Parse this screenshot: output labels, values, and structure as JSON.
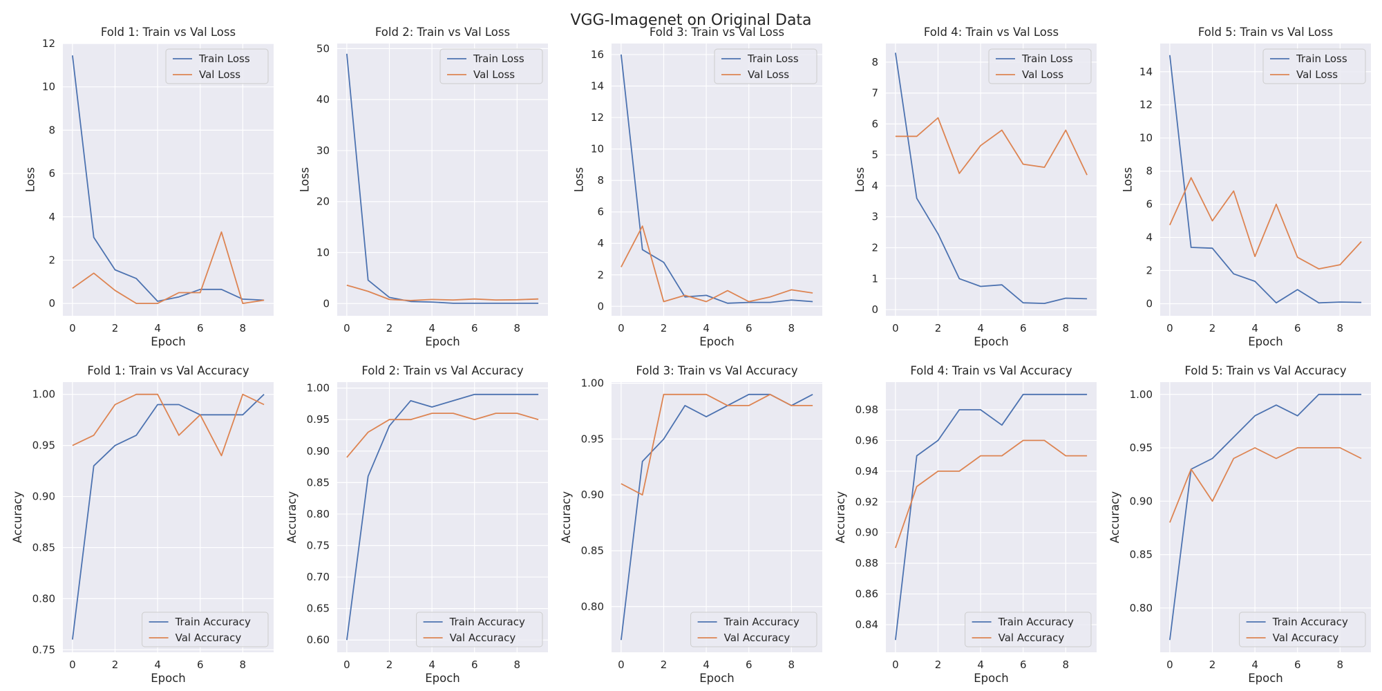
{
  "figure": {
    "title": "VGG-Imagenet on Original Data"
  },
  "colors": {
    "train": "#4c72b0",
    "val": "#dd8452",
    "axes_bg": "#eaeaf2",
    "grid": "#ffffff"
  },
  "chart_data": [
    {
      "type": "line",
      "title": "Fold 1: Train vs Val Loss",
      "xlabel": "Epoch",
      "ylabel": "Loss",
      "x": [
        0,
        1,
        2,
        3,
        4,
        5,
        6,
        7,
        8,
        9
      ],
      "xlim": [
        -0.45,
        9.45
      ],
      "xticks": [
        0,
        2,
        4,
        6,
        8
      ],
      "ylim": [
        -0.57,
        12.0
      ],
      "yticks": [
        0,
        2,
        4,
        6,
        8,
        10,
        12
      ],
      "ytick_labels": [
        "0",
        "2",
        "4",
        "6",
        "8",
        "10",
        "12"
      ],
      "legend": "top-right",
      "grid": true,
      "series": [
        {
          "name": "Train Loss",
          "color": "#4c72b0",
          "values": [
            11.45,
            3.05,
            1.55,
            1.15,
            0.1,
            0.3,
            0.65,
            0.65,
            0.2,
            0.15
          ]
        },
        {
          "name": "Val Loss",
          "color": "#dd8452",
          "values": [
            0.7,
            1.4,
            0.6,
            0.0,
            0.0,
            0.5,
            0.5,
            3.3,
            0.0,
            0.15
          ]
        }
      ]
    },
    {
      "type": "line",
      "title": "Fold 2: Train vs Val Loss",
      "xlabel": "Epoch",
      "ylabel": "Loss",
      "x": [
        0,
        1,
        2,
        3,
        4,
        5,
        6,
        7,
        8,
        9
      ],
      "xlim": [
        -0.45,
        9.45
      ],
      "xticks": [
        0,
        2,
        4,
        6,
        8
      ],
      "ylim": [
        -2.4,
        51.0
      ],
      "yticks": [
        0,
        10,
        20,
        30,
        40,
        50
      ],
      "ytick_labels": [
        "0",
        "10",
        "20",
        "30",
        "40",
        "50"
      ],
      "legend": "top-right",
      "grid": true,
      "series": [
        {
          "name": "Train Loss",
          "color": "#4c72b0",
          "values": [
            49.0,
            4.6,
            1.2,
            0.4,
            0.3,
            0.05,
            0.05,
            0.05,
            0.05,
            0.05
          ]
        },
        {
          "name": "Val Loss",
          "color": "#dd8452",
          "values": [
            3.6,
            2.4,
            0.8,
            0.6,
            0.8,
            0.7,
            0.9,
            0.7,
            0.75,
            0.9
          ]
        }
      ]
    },
    {
      "type": "line",
      "title": "Fold 3: Train vs Val Loss",
      "xlabel": "Epoch",
      "ylabel": "Loss",
      "x": [
        0,
        1,
        2,
        3,
        4,
        5,
        6,
        7,
        8,
        9
      ],
      "xlim": [
        -0.45,
        9.45
      ],
      "xticks": [
        0,
        2,
        4,
        6,
        8
      ],
      "ylim": [
        -0.6,
        16.7
      ],
      "yticks": [
        0,
        2,
        4,
        6,
        8,
        10,
        12,
        14,
        16
      ],
      "ytick_labels": [
        "0",
        "2",
        "4",
        "6",
        "8",
        "10",
        "12",
        "14",
        "16"
      ],
      "legend": "top-right",
      "grid": true,
      "series": [
        {
          "name": "Train Loss",
          "color": "#4c72b0",
          "values": [
            16.0,
            3.6,
            2.8,
            0.6,
            0.7,
            0.2,
            0.25,
            0.25,
            0.4,
            0.3
          ]
        },
        {
          "name": "Val Loss",
          "color": "#dd8452",
          "values": [
            2.5,
            5.1,
            0.3,
            0.7,
            0.3,
            1.0,
            0.3,
            0.6,
            1.05,
            0.85
          ]
        }
      ]
    },
    {
      "type": "line",
      "title": "Fold 4: Train vs Val Loss",
      "xlabel": "Epoch",
      "ylabel": "Loss",
      "x": [
        0,
        1,
        2,
        3,
        4,
        5,
        6,
        7,
        8,
        9
      ],
      "xlim": [
        -0.45,
        9.45
      ],
      "xticks": [
        0,
        2,
        4,
        6,
        8
      ],
      "ylim": [
        -0.2,
        8.6
      ],
      "yticks": [
        0,
        1,
        2,
        3,
        4,
        5,
        6,
        7,
        8
      ],
      "ytick_labels": [
        "0",
        "1",
        "2",
        "3",
        "4",
        "5",
        "6",
        "7",
        "8"
      ],
      "legend": "top-right",
      "grid": true,
      "series": [
        {
          "name": "Train Loss",
          "color": "#4c72b0",
          "values": [
            8.3,
            3.6,
            2.45,
            1.0,
            0.75,
            0.8,
            0.22,
            0.2,
            0.37,
            0.35
          ]
        },
        {
          "name": "Val Loss",
          "color": "#dd8452",
          "values": [
            5.6,
            5.6,
            6.2,
            4.4,
            5.3,
            5.8,
            4.7,
            4.6,
            5.8,
            4.35
          ]
        }
      ]
    },
    {
      "type": "line",
      "title": "Fold 5: Train vs Val Loss",
      "xlabel": "Epoch",
      "ylabel": "Loss",
      "x": [
        0,
        1,
        2,
        3,
        4,
        5,
        6,
        7,
        8,
        9
      ],
      "xlim": [
        -0.45,
        9.45
      ],
      "xticks": [
        0,
        2,
        4,
        6,
        8
      ],
      "ylim": [
        -0.73,
        15.7
      ],
      "yticks": [
        0,
        2,
        4,
        6,
        8,
        10,
        12,
        14
      ],
      "ytick_labels": [
        "0",
        "2",
        "4",
        "6",
        "8",
        "10",
        "12",
        "14"
      ],
      "legend": "top-right",
      "grid": true,
      "series": [
        {
          "name": "Train Loss",
          "color": "#4c72b0",
          "values": [
            15.0,
            3.4,
            3.35,
            1.8,
            1.35,
            0.05,
            0.85,
            0.05,
            0.1,
            0.08
          ]
        },
        {
          "name": "Val Loss",
          "color": "#dd8452",
          "values": [
            4.75,
            7.6,
            5.0,
            6.8,
            2.85,
            6.0,
            2.8,
            2.1,
            2.35,
            3.75
          ]
        }
      ]
    },
    {
      "type": "line",
      "title": "Fold 1: Train vs Val Accuracy",
      "xlabel": "Epoch",
      "ylabel": "Accuracy",
      "x": [
        0,
        1,
        2,
        3,
        4,
        5,
        6,
        7,
        8,
        9
      ],
      "xlim": [
        -0.45,
        9.45
      ],
      "xticks": [
        0,
        2,
        4,
        6,
        8
      ],
      "ylim": [
        0.7475,
        1.012
      ],
      "yticks": [
        0.75,
        0.8,
        0.85,
        0.9,
        0.95,
        1.0
      ],
      "ytick_labels": [
        "0.75",
        "0.80",
        "0.85",
        "0.90",
        "0.95",
        "1.00"
      ],
      "legend": "bottom-right",
      "grid": true,
      "series": [
        {
          "name": "Train Accuracy",
          "color": "#4c72b0",
          "values": [
            0.76,
            0.93,
            0.95,
            0.96,
            0.99,
            0.99,
            0.98,
            0.98,
            0.98,
            1.0
          ]
        },
        {
          "name": "Val Accuracy",
          "color": "#dd8452",
          "values": [
            0.95,
            0.96,
            0.99,
            1.0,
            1.0,
            0.96,
            0.98,
            0.94,
            1.0,
            0.99
          ]
        }
      ]
    },
    {
      "type": "line",
      "title": "Fold 2: Train vs Val Accuracy",
      "xlabel": "Epoch",
      "ylabel": "Accuracy",
      "x": [
        0,
        1,
        2,
        3,
        4,
        5,
        6,
        7,
        8,
        9
      ],
      "xlim": [
        -0.45,
        9.45
      ],
      "xticks": [
        0,
        2,
        4,
        6,
        8
      ],
      "ylim": [
        0.5805,
        1.0095
      ],
      "yticks": [
        0.6,
        0.65,
        0.7,
        0.75,
        0.8,
        0.85,
        0.9,
        0.95,
        1.0
      ],
      "ytick_labels": [
        "0.60",
        "0.65",
        "0.70",
        "0.75",
        "0.80",
        "0.85",
        "0.90",
        "0.95",
        "1.00"
      ],
      "legend": "bottom-right",
      "grid": true,
      "series": [
        {
          "name": "Train Accuracy",
          "color": "#4c72b0",
          "values": [
            0.6,
            0.86,
            0.94,
            0.98,
            0.97,
            0.98,
            0.99,
            0.99,
            0.99,
            0.99
          ]
        },
        {
          "name": "Val Accuracy",
          "color": "#dd8452",
          "values": [
            0.89,
            0.93,
            0.95,
            0.95,
            0.96,
            0.96,
            0.95,
            0.96,
            0.96,
            0.95
          ]
        }
      ]
    },
    {
      "type": "line",
      "title": "Fold 3: Train vs Val Accuracy",
      "xlabel": "Epoch",
      "ylabel": "Accuracy",
      "x": [
        0,
        1,
        2,
        3,
        4,
        5,
        6,
        7,
        8,
        9
      ],
      "xlim": [
        -0.45,
        9.45
      ],
      "xticks": [
        0,
        2,
        4,
        6,
        8
      ],
      "ylim": [
        0.759,
        1.001
      ],
      "yticks": [
        0.8,
        0.85,
        0.9,
        0.95,
        1.0
      ],
      "ytick_labels": [
        "0.80",
        "0.85",
        "0.90",
        "0.95",
        "1.00"
      ],
      "legend": "bottom-right",
      "grid": true,
      "series": [
        {
          "name": "Train Accuracy",
          "color": "#4c72b0",
          "values": [
            0.77,
            0.93,
            0.95,
            0.98,
            0.97,
            0.98,
            0.99,
            0.99,
            0.98,
            0.99
          ]
        },
        {
          "name": "Val Accuracy",
          "color": "#dd8452",
          "values": [
            0.91,
            0.9,
            0.99,
            0.99,
            0.99,
            0.98,
            0.98,
            0.99,
            0.98,
            0.98
          ]
        }
      ]
    },
    {
      "type": "line",
      "title": "Fold 4: Train vs Val Accuracy",
      "xlabel": "Epoch",
      "ylabel": "Accuracy",
      "x": [
        0,
        1,
        2,
        3,
        4,
        5,
        6,
        7,
        8,
        9
      ],
      "xlim": [
        -0.45,
        9.45
      ],
      "xticks": [
        0,
        2,
        4,
        6,
        8
      ],
      "ylim": [
        0.822,
        0.998
      ],
      "yticks": [
        0.84,
        0.86,
        0.88,
        0.9,
        0.92,
        0.94,
        0.96,
        0.98
      ],
      "ytick_labels": [
        "0.84",
        "0.86",
        "0.88",
        "0.90",
        "0.92",
        "0.94",
        "0.96",
        "0.98"
      ],
      "legend": "bottom-right",
      "grid": true,
      "series": [
        {
          "name": "Train Accuracy",
          "color": "#4c72b0",
          "values": [
            0.83,
            0.95,
            0.96,
            0.98,
            0.98,
            0.97,
            0.99,
            0.99,
            0.99,
            0.99
          ]
        },
        {
          "name": "Val Accuracy",
          "color": "#dd8452",
          "values": [
            0.89,
            0.93,
            0.94,
            0.94,
            0.95,
            0.95,
            0.96,
            0.96,
            0.95,
            0.95
          ]
        }
      ]
    },
    {
      "type": "line",
      "title": "Fold 5: Train vs Val Accuracy",
      "xlabel": "Epoch",
      "ylabel": "Accuracy",
      "x": [
        0,
        1,
        2,
        3,
        4,
        5,
        6,
        7,
        8,
        9
      ],
      "xlim": [
        -0.45,
        9.45
      ],
      "xticks": [
        0,
        2,
        4,
        6,
        8
      ],
      "ylim": [
        0.7585,
        1.0115
      ],
      "yticks": [
        0.8,
        0.85,
        0.9,
        0.95,
        1.0
      ],
      "ytick_labels": [
        "0.80",
        "0.85",
        "0.90",
        "0.95",
        "1.00"
      ],
      "legend": "bottom-right",
      "grid": true,
      "series": [
        {
          "name": "Train Accuracy",
          "color": "#4c72b0",
          "values": [
            0.77,
            0.93,
            0.94,
            0.96,
            0.98,
            0.99,
            0.98,
            1.0,
            1.0,
            1.0
          ]
        },
        {
          "name": "Val Accuracy",
          "color": "#dd8452",
          "values": [
            0.88,
            0.93,
            0.9,
            0.94,
            0.95,
            0.94,
            0.95,
            0.95,
            0.95,
            0.94
          ]
        }
      ]
    }
  ]
}
